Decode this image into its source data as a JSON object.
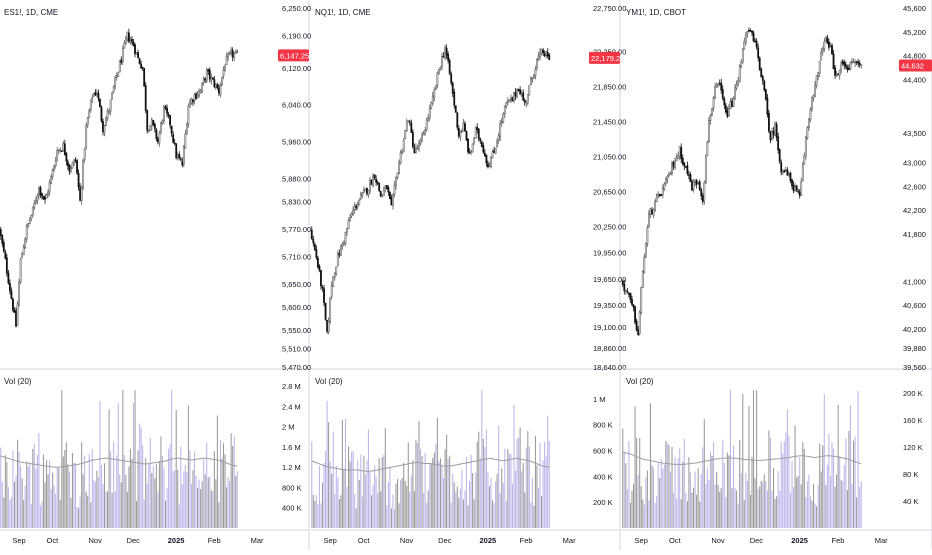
{
  "colors": {
    "up": "#5b5b5b",
    "down": "#111111",
    "badge": "#f23645",
    "vol_bar": "#b2a9e6",
    "vol_bar_dark": "#8a8a8a",
    "vol_ma": "#9e9e9e",
    "divider": "#d1d4dc",
    "vol_guide": "#2962ff"
  },
  "chart_data": [
    {
      "type": "candlestick",
      "title": "ES1!, 1D, CME",
      "last_price": "6,147.25",
      "ylim": [
        5470,
        6250
      ],
      "price_ticks": [
        "6,250.00",
        "6,190.00",
        "6,120.00",
        "6,040.00",
        "5,960.00",
        "5,880.00",
        "5,830.00",
        "5,770.00",
        "5,710.00",
        "5,650.00",
        "5,600.00",
        "5,550.00",
        "5,510.00",
        "5,470.00"
      ],
      "price_tick_values": [
        6250,
        6190,
        6120,
        6040,
        5960,
        5880,
        5830,
        5770,
        5710,
        5650,
        5600,
        5550,
        5510,
        5470
      ],
      "volume_title": "Vol (20)",
      "volume_ticks": [
        "2.8 M",
        "2.4 M",
        "2 M",
        "1.6 M",
        "1.2 M",
        "800 K",
        "400 K"
      ],
      "volume_tick_values": [
        2.8,
        2.4,
        2.0,
        1.6,
        1.2,
        0.8,
        0.4
      ],
      "volume_ylim": [
        0,
        2.8
      ],
      "dates": [
        "Sep",
        "Oct",
        "Nov",
        "Dec",
        "2025",
        "Feb",
        "Mar"
      ],
      "anchors": [
        [
          0,
          5770
        ],
        [
          4,
          5700
        ],
        [
          8,
          5620
        ],
        [
          11,
          5560
        ],
        [
          14,
          5700
        ],
        [
          18,
          5770
        ],
        [
          22,
          5810
        ],
        [
          26,
          5860
        ],
        [
          30,
          5830
        ],
        [
          34,
          5880
        ],
        [
          38,
          5940
        ],
        [
          42,
          5950
        ],
        [
          46,
          5900
        ],
        [
          50,
          5920
        ],
        [
          53,
          5830
        ],
        [
          57,
          5990
        ],
        [
          61,
          6060
        ],
        [
          64,
          6070
        ],
        [
          68,
          5990
        ],
        [
          72,
          6030
        ],
        [
          76,
          6090
        ],
        [
          80,
          6140
        ],
        [
          84,
          6190
        ],
        [
          88,
          6170
        ],
        [
          91,
          6140
        ],
        [
          94,
          6120
        ],
        [
          97,
          5990
        ],
        [
          100,
          6000
        ],
        [
          104,
          5960
        ],
        [
          108,
          6030
        ],
        [
          112,
          6000
        ],
        [
          116,
          5930
        ],
        [
          120,
          5910
        ],
        [
          124,
          6040
        ],
        [
          128,
          6060
        ],
        [
          132,
          6070
        ],
        [
          136,
          6110
        ],
        [
          140,
          6090
        ],
        [
          144,
          6070
        ],
        [
          148,
          6130
        ],
        [
          152,
          6150
        ],
        [
          155,
          6147
        ]
      ],
      "volume_levels": [
        1.45,
        1.4,
        1.25,
        1.3,
        1.2,
        1.3,
        1.1,
        1.2,
        1.25,
        1.3,
        1.25,
        1.1,
        1.05,
        1.2,
        1.15,
        1.3,
        1.25,
        1.2,
        1.35,
        1.3,
        1.45,
        1.4,
        1.3,
        1.2,
        1.35,
        1.45,
        1.35,
        1.2,
        1.1,
        1.25,
        1.3,
        1.2,
        1.15,
        1.3,
        1.4,
        1.35
      ],
      "volume_ma_levels": [
        1.42,
        1.38,
        1.34,
        1.3,
        1.28,
        1.26,
        1.24,
        1.22,
        1.2,
        1.2,
        1.22,
        1.24,
        1.26,
        1.3,
        1.34,
        1.36,
        1.38,
        1.36,
        1.34,
        1.32,
        1.3,
        1.28,
        1.26,
        1.28,
        1.3,
        1.32,
        1.36,
        1.38,
        1.36,
        1.34,
        1.36,
        1.38,
        1.36,
        1.34,
        1.3,
        1.25,
        1.22
      ]
    },
    {
      "type": "candlestick",
      "title": "NQ1!, 1D, CME",
      "last_price": "22,179.25",
      "ylim": [
        18640,
        22750
      ],
      "price_ticks": [
        "22,750.00",
        "22,250.00",
        "21,850.00",
        "21,450.00",
        "21,050.00",
        "20,650.00",
        "20,250.00",
        "19,950.00",
        "19,650.00",
        "19,350.00",
        "19,100.00",
        "18,860.00",
        "18,640.00"
      ],
      "price_tick_values": [
        22750,
        22250,
        21850,
        21450,
        21050,
        20650,
        20250,
        19950,
        19650,
        19350,
        19100,
        18860,
        18640
      ],
      "volume_title": "Vol (20)",
      "volume_ticks": [
        "1 M",
        "800 K",
        "600 K",
        "400 K",
        "200 K"
      ],
      "volume_tick_values": [
        1.0,
        0.8,
        0.6,
        0.4,
        0.2
      ],
      "volume_ylim": [
        0,
        1.1
      ],
      "dates": [
        "Sep",
        "Oct",
        "Nov",
        "Dec",
        "2025",
        "Feb",
        "Mar"
      ],
      "anchors": [
        [
          0,
          20200
        ],
        [
          4,
          19900
        ],
        [
          8,
          19500
        ],
        [
          11,
          19000
        ],
        [
          14,
          19600
        ],
        [
          18,
          19900
        ],
        [
          22,
          20100
        ],
        [
          26,
          20350
        ],
        [
          30,
          20500
        ],
        [
          34,
          20600
        ],
        [
          38,
          20700
        ],
        [
          42,
          20850
        ],
        [
          46,
          20600
        ],
        [
          50,
          20700
        ],
        [
          53,
          20450
        ],
        [
          57,
          20900
        ],
        [
          61,
          21250
        ],
        [
          64,
          21500
        ],
        [
          68,
          21100
        ],
        [
          72,
          21200
        ],
        [
          76,
          21450
        ],
        [
          80,
          21700
        ],
        [
          84,
          22050
        ],
        [
          88,
          22300
        ],
        [
          91,
          22000
        ],
        [
          94,
          21650
        ],
        [
          97,
          21300
        ],
        [
          100,
          21400
        ],
        [
          104,
          21050
        ],
        [
          108,
          21350
        ],
        [
          112,
          21200
        ],
        [
          116,
          20950
        ],
        [
          120,
          21100
        ],
        [
          124,
          21400
        ],
        [
          128,
          21650
        ],
        [
          132,
          21700
        ],
        [
          136,
          21850
        ],
        [
          140,
          21650
        ],
        [
          144,
          21900
        ],
        [
          148,
          22150
        ],
        [
          152,
          22250
        ],
        [
          155,
          22179
        ]
      ],
      "volume_levels": [
        0.55,
        0.5,
        0.45,
        0.45,
        0.4,
        0.48,
        0.42,
        0.4,
        0.45,
        0.47,
        0.44,
        0.4,
        0.38,
        0.42,
        0.45,
        0.5,
        0.48,
        0.44,
        0.52,
        0.5,
        0.56,
        0.52,
        0.48,
        0.45,
        0.5,
        0.55,
        0.52,
        0.46,
        0.42,
        0.48,
        0.5,
        0.48,
        0.45,
        0.5,
        0.52,
        0.5
      ],
      "volume_ma_levels": [
        0.52,
        0.5,
        0.48,
        0.47,
        0.46,
        0.45,
        0.45,
        0.45,
        0.44,
        0.44,
        0.45,
        0.46,
        0.47,
        0.48,
        0.49,
        0.5,
        0.51,
        0.5,
        0.5,
        0.49,
        0.48,
        0.48,
        0.49,
        0.5,
        0.51,
        0.52,
        0.53,
        0.54,
        0.53,
        0.52,
        0.53,
        0.54,
        0.53,
        0.52,
        0.5,
        0.48,
        0.47
      ]
    },
    {
      "type": "candlestick",
      "title": "YM1!, 1D, CBOT",
      "last_price": "44,632",
      "ylim": [
        39560,
        45600
      ],
      "price_ticks": [
        "45,600",
        "45,200",
        "44,800",
        "44,400",
        "43,500",
        "43,000",
        "42,600",
        "42,200",
        "41,800",
        "41,000",
        "40,600",
        "40,200",
        "39,880",
        "39,560"
      ],
      "price_tick_values": [
        45600,
        45200,
        44800,
        44400,
        43500,
        43000,
        42600,
        42200,
        41800,
        41000,
        40600,
        40200,
        39880,
        39560
      ],
      "volume_title": "Vol (20)",
      "volume_ticks": [
        "200 K",
        "160 K",
        "120 K",
        "80 K",
        "40 K"
      ],
      "volume_tick_values": [
        200,
        160,
        120,
        80,
        40
      ],
      "volume_ylim": [
        0,
        210
      ],
      "dates": [
        "Sep",
        "Oct",
        "Nov",
        "Dec",
        "2025",
        "Feb",
        "Mar"
      ],
      "anchors": [
        [
          0,
          41000
        ],
        [
          4,
          40800
        ],
        [
          8,
          40500
        ],
        [
          11,
          40100
        ],
        [
          14,
          41200
        ],
        [
          18,
          42100
        ],
        [
          22,
          42300
        ],
        [
          26,
          42500
        ],
        [
          30,
          42700
        ],
        [
          34,
          43000
        ],
        [
          38,
          43200
        ],
        [
          42,
          42900
        ],
        [
          46,
          42600
        ],
        [
          50,
          42700
        ],
        [
          53,
          42400
        ],
        [
          57,
          43700
        ],
        [
          61,
          44200
        ],
        [
          64,
          44300
        ],
        [
          68,
          43800
        ],
        [
          72,
          44000
        ],
        [
          76,
          44400
        ],
        [
          80,
          45100
        ],
        [
          84,
          45200
        ],
        [
          88,
          44900
        ],
        [
          91,
          44500
        ],
        [
          94,
          44000
        ],
        [
          97,
          43400
        ],
        [
          100,
          43600
        ],
        [
          104,
          42900
        ],
        [
          108,
          42800
        ],
        [
          112,
          42600
        ],
        [
          116,
          42400
        ],
        [
          120,
          43400
        ],
        [
          124,
          44100
        ],
        [
          128,
          44500
        ],
        [
          132,
          45100
        ],
        [
          136,
          44900
        ],
        [
          140,
          44400
        ],
        [
          144,
          44700
        ],
        [
          148,
          44600
        ],
        [
          152,
          44700
        ],
        [
          155,
          44632
        ]
      ],
      "volume_levels": [
        110,
        105,
        95,
        100,
        90,
        100,
        88,
        92,
        96,
        100,
        95,
        88,
        85,
        92,
        90,
        98,
        96,
        92,
        104,
        100,
        108,
        104,
        98,
        92,
        102,
        110,
        104,
        92,
        86,
        96,
        100,
        96,
        90,
        98,
        104,
        100
      ],
      "volume_ma_levels": [
        112,
        110,
        106,
        102,
        100,
        98,
        96,
        95,
        94,
        94,
        95,
        96,
        98,
        100,
        102,
        103,
        104,
        103,
        102,
        101,
        100,
        100,
        101,
        102,
        103,
        104,
        106,
        107,
        106,
        104,
        106,
        107,
        106,
        104,
        102,
        98,
        95
      ]
    }
  ]
}
